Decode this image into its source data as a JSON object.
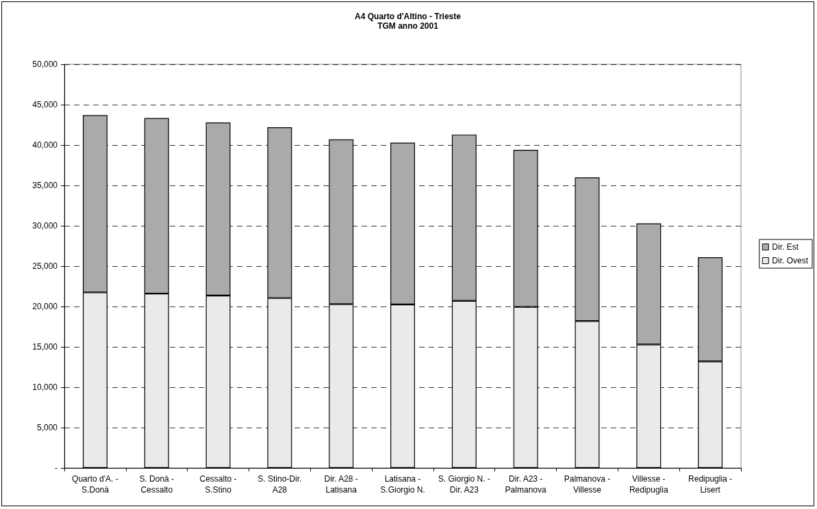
{
  "chart_data": {
    "type": "bar",
    "title": "A4 Quarto d'Altino - Trieste",
    "subtitle": "TGM anno 2001",
    "stacked": true,
    "categories": [
      "Quarto d'A. - S.Donà",
      "S. Donà - Cessalto",
      "Cessalto - S.Stino",
      "S. Stino-Dir. A28",
      "Dir. A28 - Latisana",
      "Latisana - S.Giorgio N.",
      "S. Giorgio N. - Dir. A23",
      "Dir. A23 - Palmanova",
      "Palmanova - Villesse",
      "Villesse - Redipuglia",
      "Redipuglia - Lisert"
    ],
    "series": [
      {
        "name": "Dir. Ovest",
        "color": "#eaeaea",
        "values": [
          21750,
          21600,
          21350,
          21050,
          20300,
          20250,
          20700,
          19950,
          18200,
          15300,
          13200
        ]
      },
      {
        "name": "Dir. Est",
        "color": "#aaaaaa",
        "values": [
          21950,
          21750,
          21450,
          21150,
          20400,
          20050,
          20600,
          19450,
          17800,
          15000,
          12900
        ]
      }
    ],
    "ylim": [
      0,
      50000
    ],
    "yticks": [
      {
        "value": 0,
        "label": "-"
      },
      {
        "value": 5000,
        "label": "5,000"
      },
      {
        "value": 10000,
        "label": "10,000"
      },
      {
        "value": 15000,
        "label": "15,000"
      },
      {
        "value": 20000,
        "label": "20,000"
      },
      {
        "value": 25000,
        "label": "25,000"
      },
      {
        "value": 30000,
        "label": "30,000"
      },
      {
        "value": 35000,
        "label": "35,000"
      },
      {
        "value": 40000,
        "label": "40,000"
      },
      {
        "value": 45000,
        "label": "45,000"
      },
      {
        "value": 50000,
        "label": "50,000"
      }
    ],
    "grid": "y",
    "legend": "right",
    "line_style": "dashed"
  }
}
